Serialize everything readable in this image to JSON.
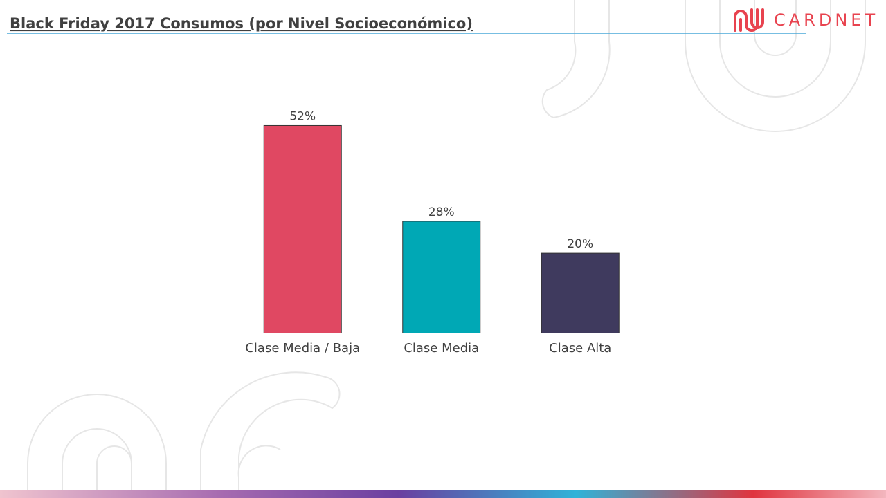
{
  "logo": "CARDNET",
  "chart_data": {
    "type": "bar",
    "title": "Black Friday 2017 Consumos (por Nivel Socioeconómico)",
    "categories": [
      "Clase Media / Baja",
      "Clase Media",
      "Clase Alta"
    ],
    "values": [
      52,
      28,
      20
    ],
    "value_labels": [
      "52%",
      "28%",
      "20%"
    ],
    "colors": [
      "#e04862",
      "#00a8b5",
      "#3f3a5e"
    ]
  }
}
